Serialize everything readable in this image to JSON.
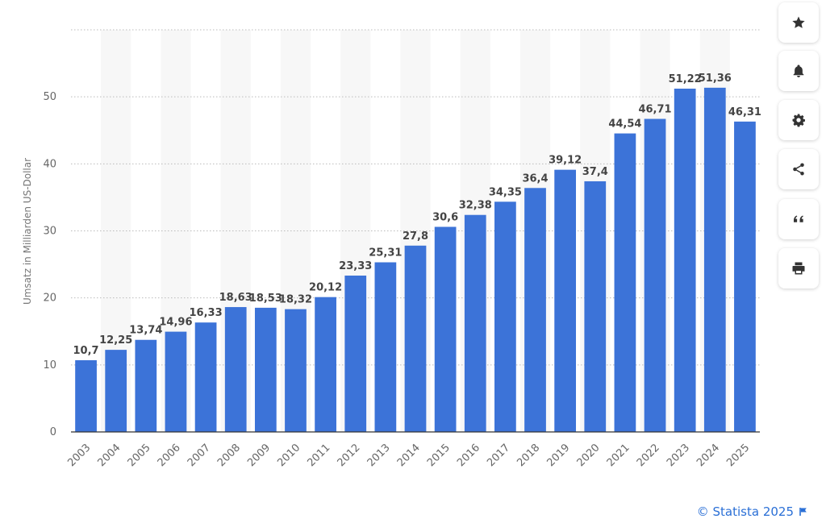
{
  "chart_data": {
    "type": "bar",
    "title": "",
    "xlabel": "",
    "ylabel": "Umsatz in Milliarden US-Dollar",
    "categories": [
      "2003",
      "2004",
      "2005",
      "2006",
      "2007",
      "2008",
      "2009",
      "2010",
      "2011",
      "2012",
      "2013",
      "2014",
      "2015",
      "2016",
      "2017",
      "2018",
      "2019",
      "2020",
      "2021",
      "2022",
      "2023",
      "2024",
      "2025"
    ],
    "values": [
      10.7,
      12.25,
      13.74,
      14.96,
      16.33,
      18.63,
      18.53,
      18.32,
      20.12,
      23.33,
      25.31,
      27.8,
      30.6,
      32.38,
      34.35,
      36.4,
      39.12,
      37.4,
      44.54,
      46.71,
      51.22,
      51.36,
      46.31
    ],
    "value_labels": [
      "10,7",
      "12,25",
      "13,74",
      "14,96",
      "16,33",
      "18,63",
      "18,53",
      "18,32",
      "20,12",
      "23,33",
      "25,31",
      "27,8",
      "30,6",
      "32,38",
      "34,35",
      "36,4",
      "39,12",
      "37,4",
      "44,54",
      "46,71",
      "51,22",
      "51,36",
      "46,31"
    ],
    "ylim": [
      0,
      60
    ],
    "yticks": [
      "0",
      "10",
      "20",
      "30",
      "40",
      "50"
    ],
    "grid": true,
    "bar_color": "#3c73d8"
  },
  "sidebar": [
    {
      "icon": "star-icon",
      "name": "favorite-button"
    },
    {
      "icon": "bell-icon",
      "name": "notification-button"
    },
    {
      "icon": "gear-icon",
      "name": "settings-button"
    },
    {
      "icon": "share-icon",
      "name": "share-button"
    },
    {
      "icon": "quote-icon",
      "name": "cite-button"
    },
    {
      "icon": "print-icon",
      "name": "print-button"
    }
  ],
  "credit": "© Statista 2025"
}
